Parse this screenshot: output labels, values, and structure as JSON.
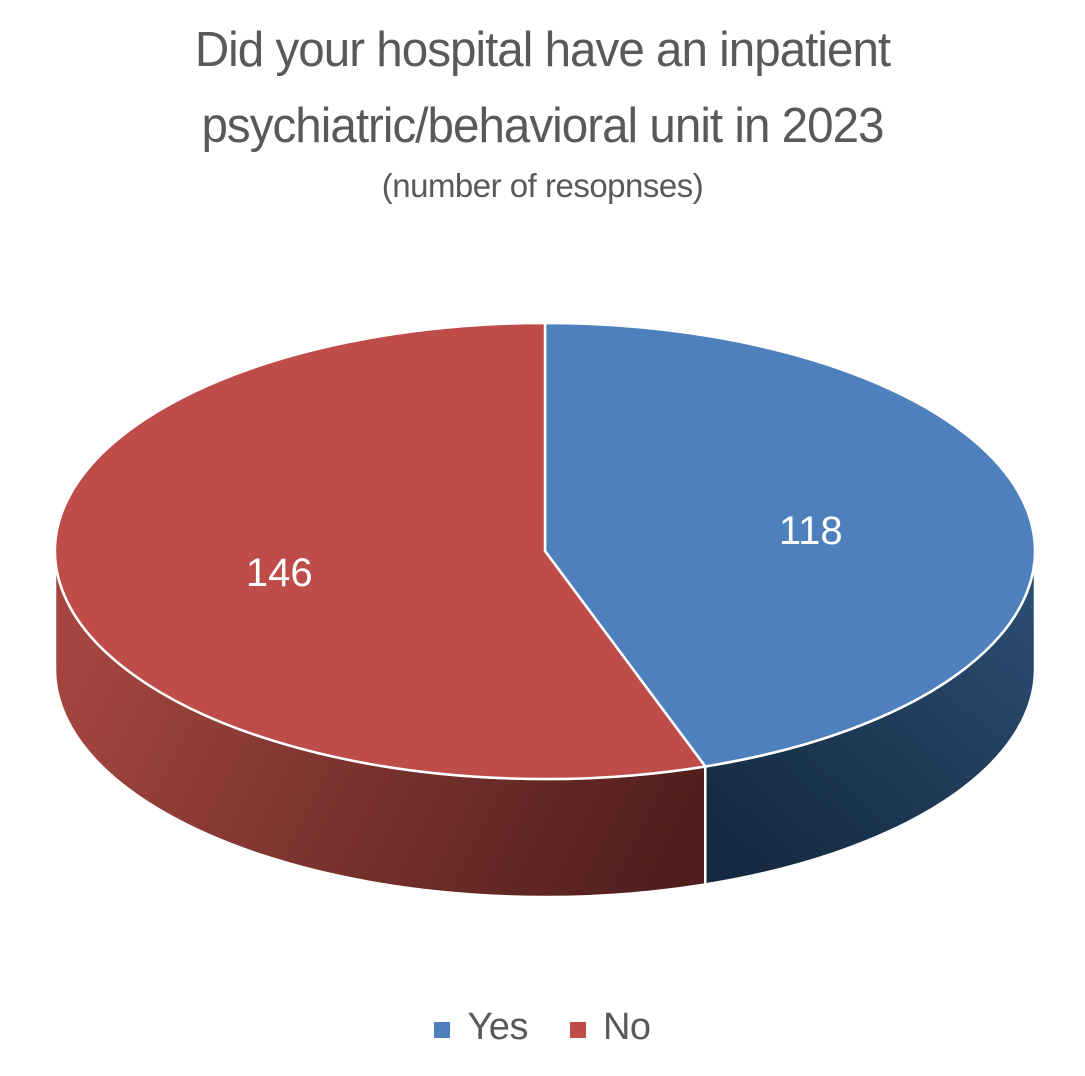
{
  "header": {
    "title_line1": "Did your hospital have an inpatient",
    "title_line2": "psychiatric/behavioral unit in 2023",
    "subtitle": "(number of resopnses)"
  },
  "chart_data": {
    "type": "pie",
    "style": "3d-pie",
    "title": "Did your hospital have an inpatient psychiatric/behavioral unit in 2023",
    "subtitle": "(number of resopnses)",
    "categories": [
      "Yes",
      "No"
    ],
    "values": [
      118,
      146
    ],
    "colors": [
      "#4E80BD",
      "#BE4C49"
    ],
    "side_gradients": [
      [
        "#2B4D72",
        "#152A40"
      ],
      [
        "#A4463F",
        "#4F1E1D"
      ]
    ],
    "start_angle_deg": 0,
    "direction": "clockwise",
    "data_labels": "values",
    "data_label_color": "#FFFFFF",
    "legend_position": "bottom",
    "text_color": "#595959"
  }
}
